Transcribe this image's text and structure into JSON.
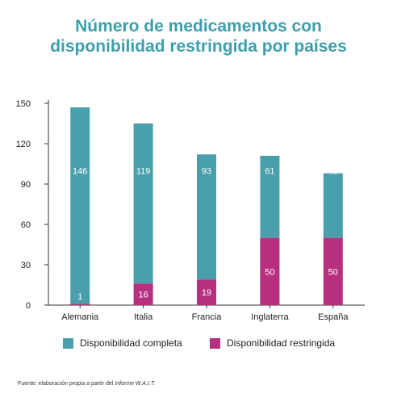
{
  "title_line1": "Número de medicamentos con",
  "title_line2": "disponibilidad restringida por países",
  "colors": {
    "title": "#3c9fab",
    "complete": "#4a9fac",
    "restricted": "#b6307f",
    "axis": "#333333"
  },
  "chart_data": {
    "type": "bar",
    "stacked": true,
    "categories": [
      "Alemania",
      "Italia",
      "Francia",
      "Inglaterra",
      "España"
    ],
    "series": [
      {
        "name": "Disponibilidad restringida",
        "values": [
          1,
          16,
          19,
          50,
          50
        ]
      },
      {
        "name": "Disponibilidad completa",
        "values": [
          146,
          119,
          93,
          61,
          48
        ]
      }
    ],
    "ylim": [
      0,
      150
    ],
    "yticks": [
      0,
      30,
      60,
      90,
      120,
      150
    ],
    "grid": false,
    "legend": "bottom"
  },
  "legend": {
    "complete_label": "Disponibilidad completa",
    "restricted_label": "Disponibilidad restringida"
  },
  "source": {
    "prefix": "Fuente: elaboración propia a partir del ",
    "italic": "Informe W.A.I.T."
  }
}
